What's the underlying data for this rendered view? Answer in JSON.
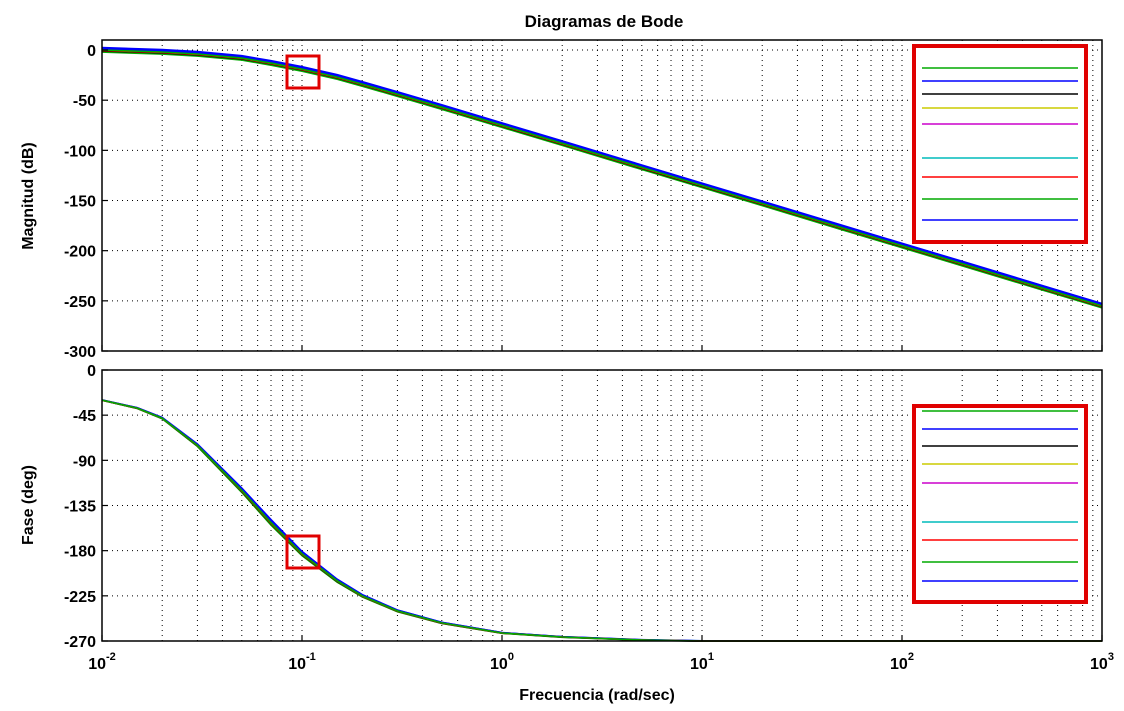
{
  "title": "Diagramas de Bode",
  "xlabel": "Frecuencia  (rad/sec)",
  "x_tick_labels": [
    {
      "base": "10",
      "exp": "-2"
    },
    {
      "base": "10",
      "exp": "-1"
    },
    {
      "base": "10",
      "exp": "0"
    },
    {
      "base": "10",
      "exp": "1"
    },
    {
      "base": "10",
      "exp": "2"
    },
    {
      "base": "10",
      "exp": "3"
    }
  ],
  "series_colors": [
    "#00aa00",
    "#0000ff",
    "#000000",
    "#cccc00",
    "#cc00cc",
    "#00bbbb",
    "#ff0000",
    "#00aa00",
    "#0000ff"
  ],
  "highlight_color": "#e00000",
  "chart_data": [
    {
      "type": "line",
      "ylabel": "Magnitud (dB)",
      "xscale": "log",
      "xlim": [
        0.01,
        1000
      ],
      "ylim": [
        -300,
        10
      ],
      "yticks": [
        0,
        -50,
        -100,
        -150,
        -200,
        -250,
        -300
      ],
      "grid": true,
      "legend": "top-right (line samples only, no labels)",
      "x": [
        0.01,
        0.02,
        0.03,
        0.05,
        0.07,
        0.1,
        0.15,
        0.2,
        0.3,
        0.5,
        1,
        2,
        5,
        10,
        20,
        50,
        100,
        200,
        500,
        1000
      ],
      "y": [
        0,
        -2,
        -4,
        -8,
        -13,
        -19,
        -27,
        -34,
        -44,
        -57,
        -75,
        -93,
        -117,
        -135,
        -153,
        -177,
        -195,
        -213,
        -237,
        -255
      ]
    },
    {
      "type": "line",
      "ylabel": "Fase (deg)",
      "xscale": "log",
      "xlim": [
        0.01,
        1000
      ],
      "ylim": [
        -270,
        0
      ],
      "yticks": [
        0,
        -45,
        -90,
        -135,
        -180,
        -225,
        -270
      ],
      "grid": true,
      "legend": "top-right (line samples only, no labels)",
      "x": [
        0.01,
        0.015,
        0.02,
        0.03,
        0.05,
        0.07,
        0.1,
        0.15,
        0.2,
        0.3,
        0.5,
        1,
        2,
        5,
        10,
        100,
        1000
      ],
      "y": [
        -30,
        -38,
        -48,
        -75,
        -120,
        -152,
        -183,
        -210,
        -225,
        -240,
        -252,
        -262,
        -266,
        -269,
        -270,
        -270,
        -270
      ]
    }
  ]
}
